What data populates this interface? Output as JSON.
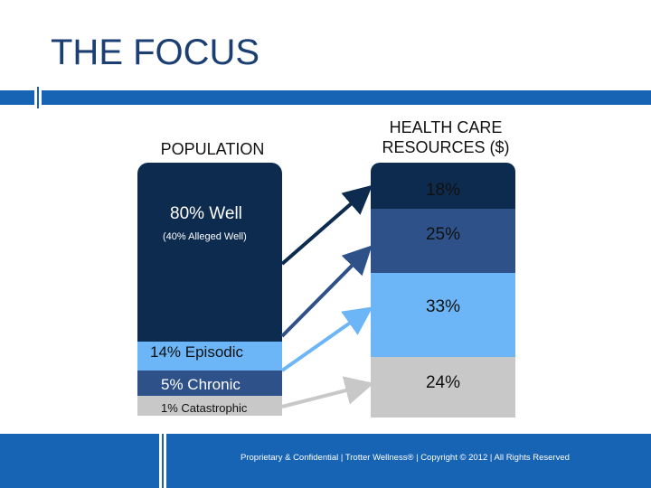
{
  "slide": {
    "title": "THE FOCUS",
    "footer": "Proprietary & Confidential | Trotter Wellness® | Copyright © 2012 | All Rights Reserved"
  },
  "colors": {
    "accent": "#1763b4",
    "navy": "#0d2b4e",
    "mid_blue": "#2d5188",
    "light_blue": "#6cb6f8",
    "gray": "#c8c8c8"
  },
  "chart_data": {
    "type": "stacked-bar",
    "columns": [
      {
        "name": "POPULATION",
        "segments": [
          {
            "label": "80% Well",
            "sublabel": "(40% Alleged Well)",
            "value": 80,
            "color": "#0d2b4e"
          },
          {
            "label": "14% Episodic",
            "value": 14,
            "color": "#6cb6f8"
          },
          {
            "label": "5% Chronic",
            "value": 5,
            "color": "#2d5188"
          },
          {
            "label": "1% Catastrophic",
            "value": 1,
            "color": "#c8c8c8"
          }
        ]
      },
      {
        "name": "HEALTH CARE RESOURCES ($)",
        "segments": [
          {
            "label": "18%",
            "value": 18,
            "color": "#0d2b4e"
          },
          {
            "label": "25%",
            "value": 25,
            "color": "#2d5188"
          },
          {
            "label": "33%",
            "value": 33,
            "color": "#6cb6f8"
          },
          {
            "label": "24%",
            "value": 24,
            "color": "#c8c8c8"
          }
        ]
      }
    ],
    "arrows": [
      {
        "from": "80% Well",
        "to": "18%",
        "color": "#0d2b4e"
      },
      {
        "from": "5% Chronic",
        "to": "25%",
        "color": "#2d5188"
      },
      {
        "from": "14% Episodic",
        "to": "33%",
        "color": "#6cb6f8"
      },
      {
        "from": "1% Catastrophic",
        "to": "24%",
        "color": "#c8c8c8"
      }
    ]
  }
}
